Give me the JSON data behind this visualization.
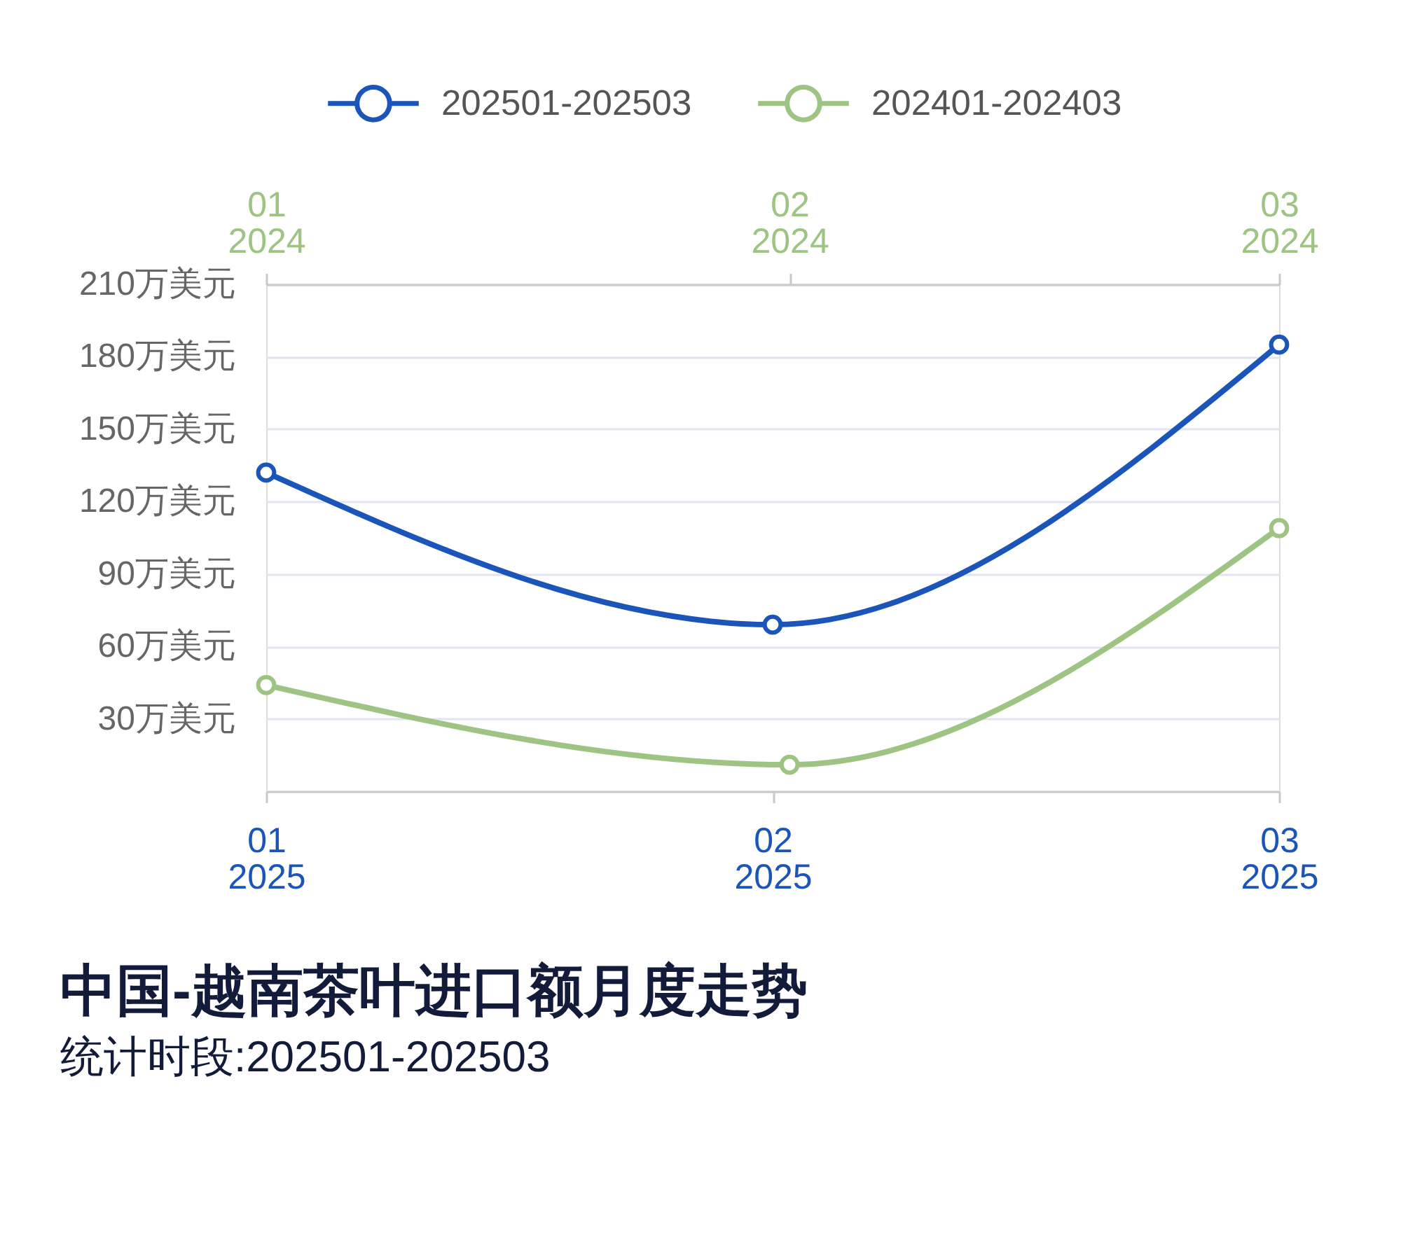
{
  "chart_data": {
    "type": "line",
    "title": "中国-越南茶叶进口额月度走势",
    "subtitle": "统计时段:202501-202503",
    "categories": [
      "01\n2025",
      "02\n2025",
      "03\n2025"
    ],
    "x2lim": [
      "2024-01",
      "2024-03"
    ],
    "x2ticks": [
      {
        "value": "2024-01",
        "label": "01\n2024"
      },
      {
        "value": "2024-02",
        "label": "02\n2024"
      },
      {
        "value": "2024-03",
        "label": "03\n2024"
      }
    ],
    "ylim": [
      0,
      210
    ],
    "yticks": [
      {
        "value": 0,
        "label": null
      },
      {
        "value": 30,
        "label": "30万美元"
      },
      {
        "value": 60,
        "label": "60万美元"
      },
      {
        "value": 90,
        "label": "90万美元"
      },
      {
        "value": 120,
        "label": "120万美元"
      },
      {
        "value": 150,
        "label": "150万美元"
      },
      {
        "value": 180,
        "label": "180万美元"
      },
      {
        "value": 210,
        "label": "210万美元"
      }
    ],
    "series": [
      {
        "name": "202501-202503",
        "color": "#1c55b9",
        "values": [
          132,
          69,
          185
        ]
      },
      {
        "name": "202401-202403",
        "color": "#9dc483",
        "values": [
          44,
          11,
          109
        ],
        "axis": "x2",
        "x": [
          "2024-01",
          "2024-02",
          "2024-03"
        ]
      }
    ],
    "grid": "y",
    "legend": "top",
    "marker": "circle",
    "line_style": "solid"
  }
}
